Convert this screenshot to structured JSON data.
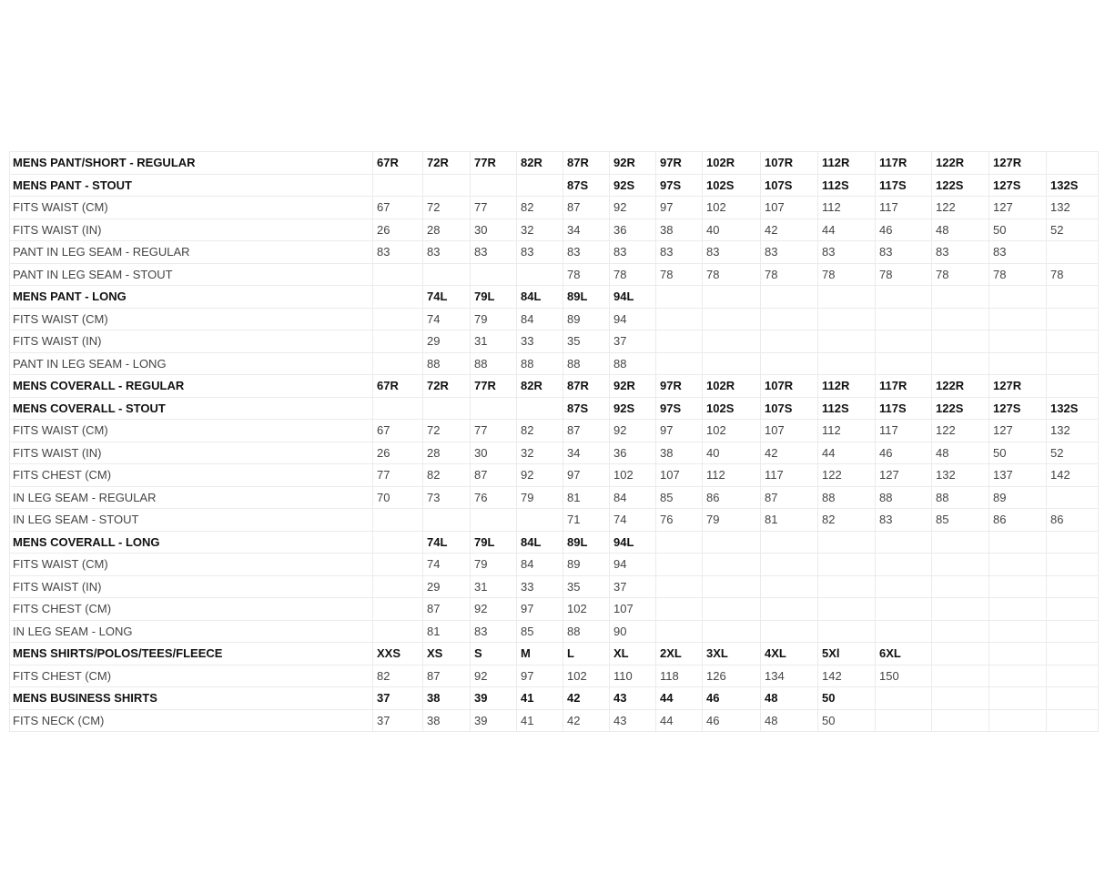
{
  "size_chart": {
    "rows": [
      {
        "bold": true,
        "cells": [
          "MENS PANT/SHORT - REGULAR",
          "67R",
          "72R",
          "77R",
          "82R",
          "87R",
          "92R",
          "97R",
          "102R",
          "107R",
          "112R",
          "117R",
          "122R",
          "127R",
          ""
        ]
      },
      {
        "bold": true,
        "cells": [
          "MENS PANT - STOUT",
          "",
          "",
          "",
          "",
          "87S",
          "92S",
          "97S",
          "102S",
          "107S",
          "112S",
          "117S",
          "122S",
          "127S",
          "132S"
        ]
      },
      {
        "bold": false,
        "cells": [
          "FITS WAIST (CM)",
          "67",
          "72",
          "77",
          "82",
          "87",
          "92",
          "97",
          "102",
          "107",
          "112",
          "117",
          "122",
          "127",
          "132"
        ]
      },
      {
        "bold": false,
        "cells": [
          "FITS WAIST (IN)",
          "26",
          "28",
          "30",
          "32",
          "34",
          "36",
          "38",
          "40",
          "42",
          "44",
          "46",
          "48",
          "50",
          "52"
        ]
      },
      {
        "bold": false,
        "cells": [
          "PANT IN LEG SEAM - REGULAR",
          "83",
          "83",
          "83",
          "83",
          "83",
          "83",
          "83",
          "83",
          "83",
          "83",
          "83",
          "83",
          "83",
          ""
        ]
      },
      {
        "bold": false,
        "cells": [
          "PANT IN LEG SEAM - STOUT",
          "",
          "",
          "",
          "",
          "78",
          "78",
          "78",
          "78",
          "78",
          "78",
          "78",
          "78",
          "78",
          "78"
        ]
      },
      {
        "bold": true,
        "cells": [
          "MENS PANT - LONG",
          "",
          "74L",
          "79L",
          "84L",
          "89L",
          "94L",
          "",
          "",
          "",
          "",
          "",
          "",
          "",
          ""
        ]
      },
      {
        "bold": false,
        "cells": [
          "FITS WAIST (CM)",
          "",
          "74",
          "79",
          "84",
          "89",
          "94",
          "",
          "",
          "",
          "",
          "",
          "",
          "",
          ""
        ]
      },
      {
        "bold": false,
        "cells": [
          "FITS WAIST (IN)",
          "",
          "29",
          "31",
          "33",
          "35",
          "37",
          "",
          "",
          "",
          "",
          "",
          "",
          "",
          ""
        ]
      },
      {
        "bold": false,
        "cells": [
          "PANT IN LEG SEAM - LONG",
          "",
          "88",
          "88",
          "88",
          "88",
          "88",
          "",
          "",
          "",
          "",
          "",
          "",
          "",
          ""
        ]
      },
      {
        "bold": true,
        "cells": [
          "MENS COVERALL - REGULAR",
          "67R",
          "72R",
          "77R",
          "82R",
          "87R",
          "92R",
          "97R",
          "102R",
          "107R",
          "112R",
          "117R",
          "122R",
          "127R",
          ""
        ]
      },
      {
        "bold": true,
        "cells": [
          "MENS COVERALL - STOUT",
          "",
          "",
          "",
          "",
          "87S",
          "92S",
          "97S",
          "102S",
          "107S",
          "112S",
          "117S",
          "122S",
          "127S",
          "132S"
        ]
      },
      {
        "bold": false,
        "cells": [
          "FITS WAIST (CM)",
          "67",
          "72",
          "77",
          "82",
          "87",
          "92",
          "97",
          "102",
          "107",
          "112",
          "117",
          "122",
          "127",
          "132"
        ]
      },
      {
        "bold": false,
        "cells": [
          "FITS WAIST (IN)",
          "26",
          "28",
          "30",
          "32",
          "34",
          "36",
          "38",
          "40",
          "42",
          "44",
          "46",
          "48",
          "50",
          "52"
        ]
      },
      {
        "bold": false,
        "cells": [
          "FITS CHEST (CM)",
          "77",
          "82",
          "87",
          "92",
          "97",
          "102",
          "107",
          "112",
          "117",
          "122",
          "127",
          "132",
          "137",
          "142"
        ]
      },
      {
        "bold": false,
        "cells": [
          "IN LEG SEAM - REGULAR",
          "70",
          "73",
          "76",
          "79",
          "81",
          "84",
          "85",
          "86",
          "87",
          "88",
          "88",
          "88",
          "89",
          ""
        ]
      },
      {
        "bold": false,
        "cells": [
          "IN LEG SEAM - STOUT",
          "",
          "",
          "",
          "",
          "71",
          "74",
          "76",
          "79",
          "81",
          "82",
          "83",
          "85",
          "86",
          "86"
        ]
      },
      {
        "bold": true,
        "cells": [
          "MENS COVERALL - LONG",
          "",
          "74L",
          "79L",
          "84L",
          "89L",
          "94L",
          "",
          "",
          "",
          "",
          "",
          "",
          "",
          ""
        ]
      },
      {
        "bold": false,
        "cells": [
          "FITS WAIST (CM)",
          "",
          "74",
          "79",
          "84",
          "89",
          "94",
          "",
          "",
          "",
          "",
          "",
          "",
          "",
          ""
        ]
      },
      {
        "bold": false,
        "cells": [
          "FITS WAIST (IN)",
          "",
          "29",
          "31",
          "33",
          "35",
          "37",
          "",
          "",
          "",
          "",
          "",
          "",
          "",
          ""
        ]
      },
      {
        "bold": false,
        "cells": [
          "FITS CHEST (CM)",
          "",
          "87",
          "92",
          "97",
          "102",
          "107",
          "",
          "",
          "",
          "",
          "",
          "",
          "",
          ""
        ]
      },
      {
        "bold": false,
        "cells": [
          "IN LEG SEAM - LONG",
          "",
          "81",
          "83",
          "85",
          "88",
          "90",
          "",
          "",
          "",
          "",
          "",
          "",
          "",
          ""
        ]
      },
      {
        "bold": true,
        "cells": [
          "MENS SHIRTS/POLOS/TEES/FLEECE",
          "XXS",
          "XS",
          "S",
          "M",
          "L",
          "XL",
          "2XL",
          "3XL",
          "4XL",
          "5Xl",
          "6XL",
          "",
          "",
          ""
        ]
      },
      {
        "bold": false,
        "cells": [
          "FITS CHEST (CM)",
          "82",
          "87",
          "92",
          "97",
          "102",
          "110",
          "118",
          "126",
          "134",
          "142",
          "150",
          "",
          "",
          ""
        ]
      },
      {
        "bold": true,
        "cells": [
          "MENS BUSINESS SHIRTS",
          "37",
          "38",
          "39",
          "41",
          "42",
          "43",
          "44",
          "46",
          "48",
          "50",
          "",
          "",
          "",
          ""
        ]
      },
      {
        "bold": false,
        "cells": [
          "FITS NECK (CM)",
          "37",
          "38",
          "39",
          "41",
          "42",
          "43",
          "44",
          "46",
          "48",
          "50",
          "",
          "",
          "",
          ""
        ]
      }
    ]
  }
}
